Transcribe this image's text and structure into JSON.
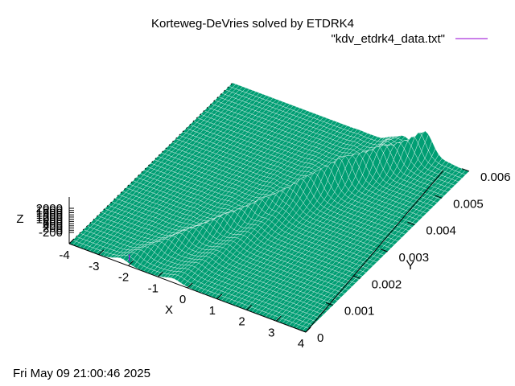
{
  "chart_data": {
    "type": "surface",
    "title": "Korteweg-DeVries solved by ETDRK4",
    "xlabel": "X",
    "ylabel": "Y",
    "zlabel": "Z",
    "xlim": [
      -4,
      4
    ],
    "ylim": [
      0,
      0.006
    ],
    "x_ticks": [
      "-4",
      "-3",
      "-2",
      "-1",
      "0",
      "1",
      "2",
      "3",
      "4"
    ],
    "y_ticks": [
      "0",
      "0.001",
      "0.002",
      "0.003",
      "0.004",
      "0.005",
      "0.006"
    ],
    "z_ticks": [
      "-200",
      "0",
      "200",
      "400",
      "600",
      "800",
      "1000",
      "1200",
      "1400",
      "1600",
      "1800",
      "2000"
    ],
    "legend": {
      "placement": "top-right",
      "entries": [
        {
          "label": "\"kdv_etdrk4_data.txt\"",
          "color": "#9400d3"
        }
      ]
    },
    "surface_color": "#009e73",
    "timestamp": "Fri May 09 21:00:46 2025"
  }
}
